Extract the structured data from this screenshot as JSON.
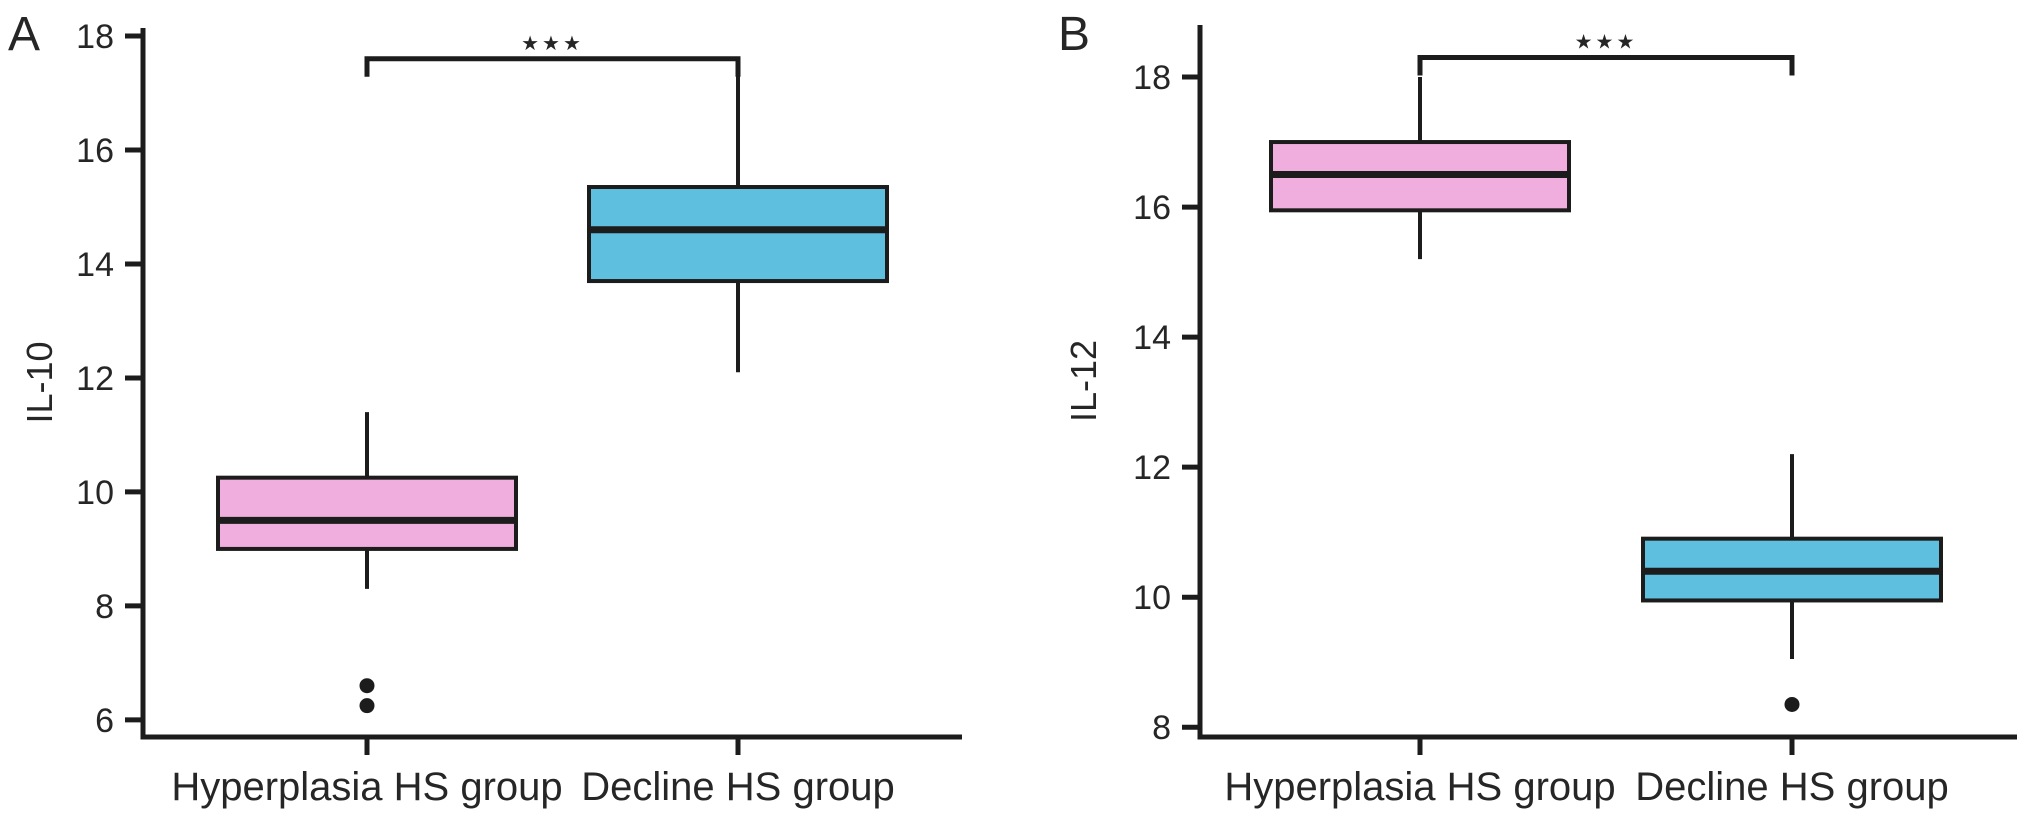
{
  "figure": {
    "description_colors": {
      "hyperplasia_box": "#f0aede",
      "decline_box": "#5fbfdf",
      "line_color": "#1c1c1c",
      "background": "#ffffff"
    }
  },
  "chart_data": [
    {
      "type": "box",
      "panel_label": "A",
      "ylabel": "IL-10",
      "xlabel": "",
      "categories": [
        "Hyperplasia HS group",
        "Decline HS group"
      ],
      "yticks": [
        6,
        8,
        10,
        12,
        14,
        16,
        18
      ],
      "ylim": [
        5.7,
        18.14
      ],
      "grid": false,
      "legend": "none",
      "series": [
        {
          "name": "Hyperplasia HS group",
          "color": "#f0aede",
          "whisker_low": 8.3,
          "q1": 9.0,
          "median": 9.5,
          "q3": 10.25,
          "whisker_high": 11.4,
          "outliers": [
            6.6,
            6.25
          ]
        },
        {
          "name": "Decline HS group",
          "color": "#5fbfdf",
          "whisker_low": 12.1,
          "q1": 13.7,
          "median": 14.6,
          "q3": 15.35,
          "whisker_high": 17.3,
          "outliers": []
        }
      ],
      "significance": {
        "label": "★★★",
        "bracket_y": 17.6
      }
    },
    {
      "type": "box",
      "panel_label": "B",
      "ylabel": "IL-12",
      "xlabel": "",
      "categories": [
        "Hyperplasia HS group",
        "Decline HS group"
      ],
      "yticks": [
        8,
        10,
        12,
        14,
        16,
        18
      ],
      "ylim": [
        7.85,
        18.8
      ],
      "grid": false,
      "legend": "none",
      "series": [
        {
          "name": "Hyperplasia HS group",
          "color": "#f0aede",
          "whisker_low": 15.2,
          "q1": 15.95,
          "median": 16.5,
          "q3": 17.0,
          "whisker_high": 18.0,
          "outliers": []
        },
        {
          "name": "Decline HS group",
          "color": "#5fbfdf",
          "whisker_low": 9.05,
          "q1": 9.95,
          "median": 10.4,
          "q3": 10.9,
          "whisker_high": 12.2,
          "outliers": [
            8.35
          ]
        }
      ],
      "significance": {
        "label": "★★★",
        "bracket_y": 18.3
      }
    }
  ]
}
